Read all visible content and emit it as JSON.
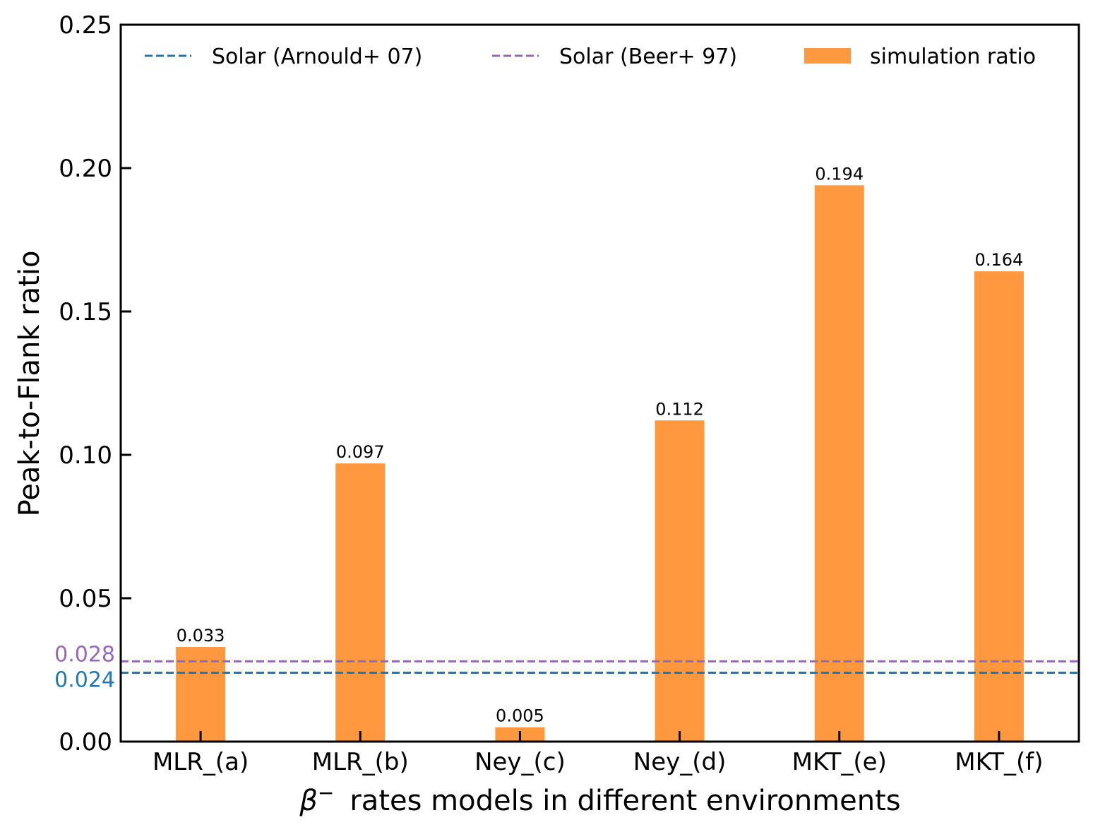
{
  "chart_data": {
    "type": "bar",
    "categories": [
      "MLR_(a)",
      "MLR_(b)",
      "Ney_(c)",
      "Ney_(d)",
      "MKT_(e)",
      "MKT_(f)"
    ],
    "series": [
      {
        "name": "simulation ratio",
        "values": [
          0.033,
          0.097,
          0.005,
          0.112,
          0.194,
          0.164
        ],
        "value_labels": [
          "0.033",
          "0.097",
          "0.005",
          "0.112",
          "0.194",
          "0.164"
        ],
        "color": "#ff983f"
      }
    ],
    "reference_lines": [
      {
        "name": "Solar (Arnould+ 07)",
        "value": 0.024,
        "label": "0.024",
        "color": "#1f77b4",
        "style": "dashed"
      },
      {
        "name": "Solar (Beer+ 97)",
        "value": 0.028,
        "label": "0.028",
        "color": "#9467bd",
        "style": "dashed"
      }
    ],
    "xlabel_symbol": "β",
    "xlabel_sup": "−",
    "xlabel": "rates models in different environments",
    "ylabel": "Peak-to-Flank ratio",
    "ylim": [
      0,
      0.25
    ],
    "yticks": [
      0.0,
      0.05,
      0.1,
      0.15,
      0.2,
      0.25
    ],
    "ytick_labels": [
      "0.00",
      "0.05",
      "0.10",
      "0.15",
      "0.20",
      "0.25"
    ],
    "grid": false,
    "legend": {
      "placement": "top",
      "entries": [
        "Solar (Arnould+ 07)",
        "Solar (Beer+ 97)",
        "simulation ratio"
      ]
    }
  }
}
